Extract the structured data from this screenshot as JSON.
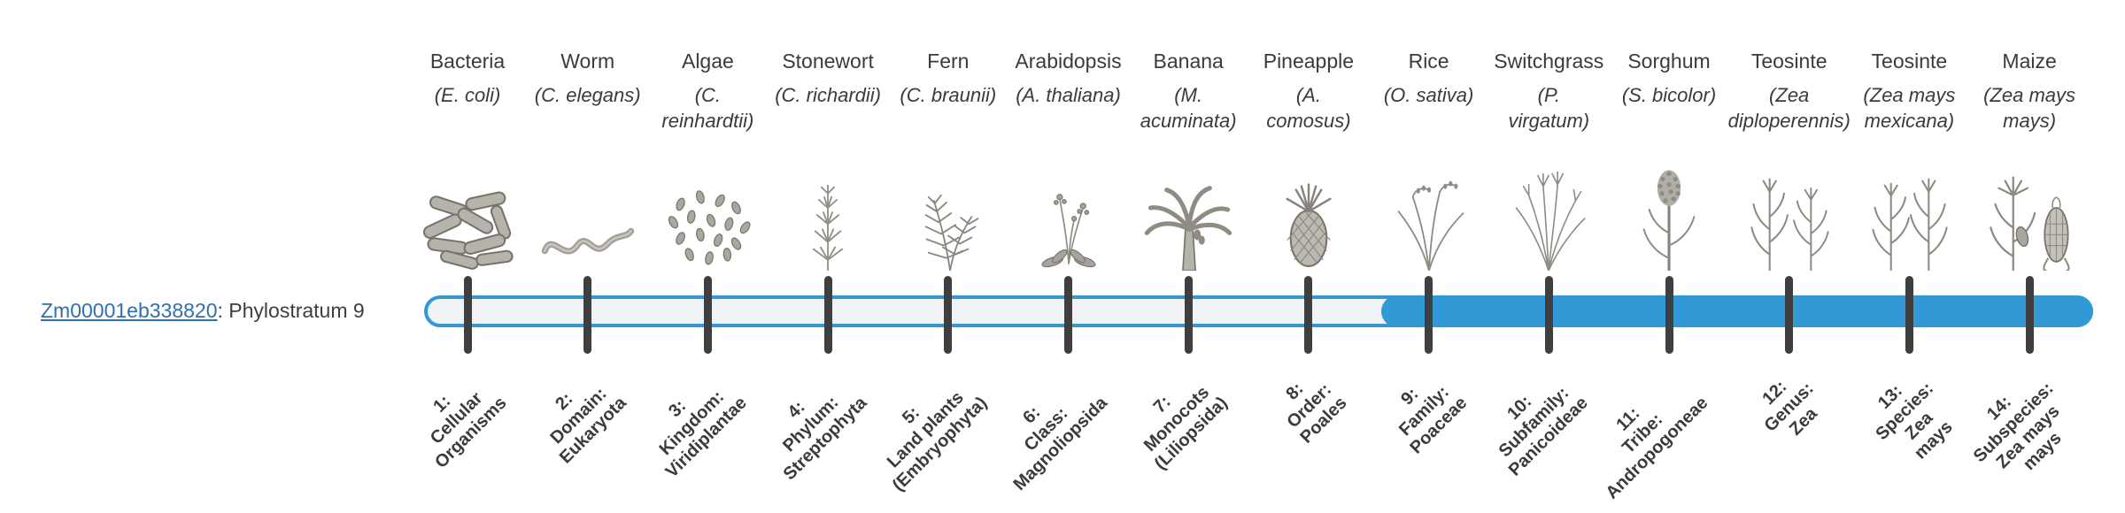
{
  "colors": {
    "accent": "#3399d6",
    "track": "#f1f3f6",
    "tick": "#3f3f3f",
    "link": "#2d70b3"
  },
  "gene": {
    "id": "Zm00001eb338820",
    "suffix": ": Phylostratum 9"
  },
  "bar": {
    "phylostratum": 9,
    "filled_from_index": 8
  },
  "columns": [
    {
      "common": "Bacteria",
      "sci": [
        "(E. coli)"
      ],
      "icon": "bacteria-icon",
      "tick_label": [
        "1:",
        "Cellular",
        "Organisms"
      ]
    },
    {
      "common": "Worm",
      "sci": [
        "(C. elegans)"
      ],
      "icon": "worm-icon",
      "tick_label": [
        "2:",
        "Domain:",
        "Eukaryota"
      ]
    },
    {
      "common": "Algae",
      "sci": [
        "(C.",
        "reinhardtii)"
      ],
      "icon": "algae-icon",
      "tick_label": [
        "3:",
        "Kingdom:",
        "Viridiplantae"
      ]
    },
    {
      "common": "Stonewort",
      "sci": [
        "(C. richardii)"
      ],
      "icon": "stonewort-icon",
      "tick_label": [
        "4:",
        "Phylum:",
        "Streptophyta"
      ]
    },
    {
      "common": "Fern",
      "sci": [
        "(C. braunii)"
      ],
      "icon": "fern-icon",
      "tick_label": [
        "5:",
        "Land plants",
        "(Embryophyta)"
      ]
    },
    {
      "common": "Arabidopsis",
      "sci": [
        "(A. thaliana)"
      ],
      "icon": "arabidopsis-icon",
      "tick_label": [
        "6:",
        "Class:",
        "Magnoliopsida"
      ]
    },
    {
      "common": "Banana",
      "sci": [
        "(M.",
        "acuminata)"
      ],
      "icon": "banana-icon",
      "tick_label": [
        "7:",
        "Monocots",
        "(Liliopsida)"
      ]
    },
    {
      "common": "Pineapple",
      "sci": [
        "(A.",
        "comosus)"
      ],
      "icon": "pineapple-icon",
      "tick_label": [
        "8:",
        "Order:",
        "Poales"
      ]
    },
    {
      "common": "Rice",
      "sci": [
        "(O. sativa)"
      ],
      "icon": "rice-icon",
      "tick_label": [
        "9:",
        "Family:",
        "Poaceae"
      ]
    },
    {
      "common": "Switchgrass",
      "sci": [
        "(P.",
        "virgatum)"
      ],
      "icon": "switchgrass-icon",
      "tick_label": [
        "10:",
        "Subfamily:",
        "Panicoideae"
      ]
    },
    {
      "common": "Sorghum",
      "sci": [
        "(S. bicolor)"
      ],
      "icon": "sorghum-icon",
      "tick_label": [
        "11:",
        "Tribe:",
        "Andropogoneae"
      ]
    },
    {
      "common": "Teosinte",
      "sci": [
        "(Zea",
        "diploperennis)"
      ],
      "icon": "teosinte-icon",
      "tick_label": [
        "12:",
        "Genus:",
        "Zea"
      ]
    },
    {
      "common": "Teosinte",
      "sci": [
        "(Zea mays",
        "mexicana)"
      ],
      "icon": "teosinte2-icon",
      "tick_label": [
        "13:",
        "Species:",
        "Zea",
        "mays"
      ]
    },
    {
      "common": "Maize",
      "sci": [
        "(Zea mays",
        "mays)"
      ],
      "icon": "maize-icon",
      "tick_label": [
        "14:",
        "Subspecies:",
        "Zea mays",
        "mays"
      ]
    }
  ]
}
